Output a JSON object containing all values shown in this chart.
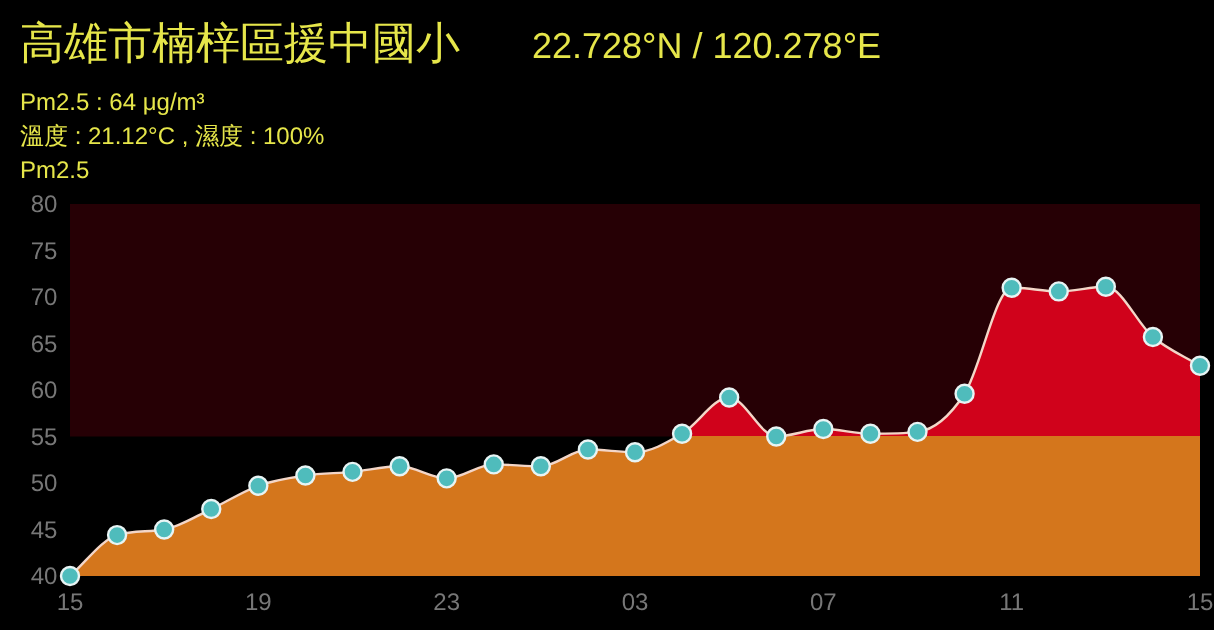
{
  "chart_data": {
    "type": "area",
    "title": "高雄市楠梓區援中國小",
    "subtitle": "22.728°N / 120.278°E",
    "ylabel": "Pm2.5",
    "annotations": [
      "Pm2.5 : 64 μg/m³",
      "溫度 : 21.12°C , 濕度 : 100%"
    ],
    "categories": [
      "15",
      null,
      null,
      null,
      "19",
      null,
      null,
      null,
      "23",
      null,
      null,
      null,
      "03",
      null,
      null,
      null,
      "07",
      null,
      null,
      null,
      "11",
      null,
      null,
      null,
      "15"
    ],
    "series": [
      {
        "color": "#d4761c",
        "values": [
          40,
          44.4,
          45,
          47.2,
          49.7,
          50.8,
          51.2,
          51.8,
          50.5,
          52,
          51.8,
          53.6,
          53.3,
          55.3,
          59.2,
          55,
          55.8,
          55.3,
          55.5,
          59.6,
          71,
          70.6,
          71.1,
          65.7,
          62.6
        ]
      }
    ],
    "bands": [
      {
        "axis": "y",
        "from": 55,
        "to": 80,
        "color": "#d0021b"
      }
    ],
    "ylim": [
      40,
      80
    ],
    "yticks": [
      40,
      45,
      50,
      55,
      60,
      65,
      70,
      75,
      80
    ],
    "marker": "circle",
    "grid": false
  }
}
